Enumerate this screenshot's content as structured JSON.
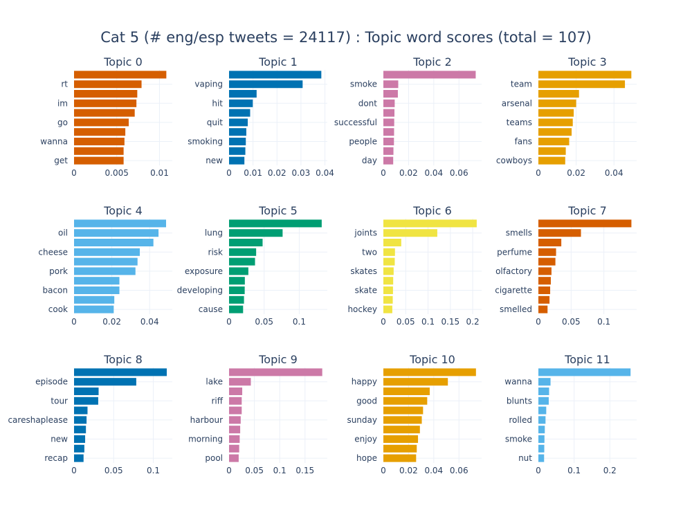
{
  "title": "Cat 5 (# eng/esp tweets = 24117) : Topic word scores (total = 107)",
  "chart_data": [
    {
      "type": "bar",
      "orientation": "horizontal",
      "title": "Topic 0",
      "color": "#D55E00",
      "categories": [
        "",
        "rt",
        "",
        "im",
        "",
        "go",
        "",
        "wanna",
        "",
        "get"
      ],
      "values": [
        0.0108,
        0.0079,
        0.0074,
        0.0073,
        0.0071,
        0.0064,
        0.006,
        0.0059,
        0.0058,
        0.0058
      ],
      "xlim": [
        0,
        0.0115
      ],
      "xticks": [
        {
          "v": 0,
          "label": "0"
        },
        {
          "v": 0.005,
          "label": "0.005"
        },
        {
          "v": 0.01,
          "label": "0.01"
        }
      ]
    },
    {
      "type": "bar",
      "orientation": "horizontal",
      "title": "Topic 1",
      "color": "#0072B2",
      "categories": [
        "",
        "vaping",
        "",
        "hit",
        "",
        "quit",
        "",
        "smoking",
        "",
        "new"
      ],
      "values": [
        0.0385,
        0.0307,
        0.0115,
        0.0099,
        0.0088,
        0.0078,
        0.0072,
        0.007,
        0.0068,
        0.0064
      ],
      "xlim": [
        0,
        0.041
      ],
      "xticks": [
        {
          "v": 0,
          "label": "0"
        },
        {
          "v": 0.01,
          "label": "0.01"
        },
        {
          "v": 0.02,
          "label": "0.02"
        },
        {
          "v": 0.03,
          "label": "0.03"
        },
        {
          "v": 0.04,
          "label": "0.04"
        }
      ]
    },
    {
      "type": "bar",
      "orientation": "horizontal",
      "title": "Topic 2",
      "color": "#CC79A7",
      "categories": [
        "",
        "smoke",
        "",
        "dont",
        "",
        "successful",
        "",
        "people",
        "",
        "day"
      ],
      "values": [
        0.0733,
        0.0118,
        0.0115,
        0.009,
        0.0088,
        0.0086,
        0.0085,
        0.0084,
        0.008,
        0.0078
      ],
      "xlim": [
        0,
        0.078
      ],
      "xticks": [
        {
          "v": 0,
          "label": "0"
        },
        {
          "v": 0.02,
          "label": "0.02"
        },
        {
          "v": 0.04,
          "label": "0.04"
        },
        {
          "v": 0.06,
          "label": "0.06"
        }
      ]
    },
    {
      "type": "bar",
      "orientation": "horizontal",
      "title": "Topic 3",
      "color": "#E69F00",
      "categories": [
        "",
        "team",
        "",
        "arsenal",
        "",
        "teams",
        "",
        "fans",
        "",
        "cowboys"
      ],
      "values": [
        0.0492,
        0.0458,
        0.0215,
        0.02,
        0.0187,
        0.0182,
        0.0176,
        0.0163,
        0.0145,
        0.0142
      ],
      "xlim": [
        0,
        0.052
      ],
      "xticks": [
        {
          "v": 0,
          "label": "0"
        },
        {
          "v": 0.02,
          "label": "0.02"
        },
        {
          "v": 0.04,
          "label": "0.04"
        }
      ]
    },
    {
      "type": "bar",
      "orientation": "horizontal",
      "title": "Topic 4",
      "color": "#56B4E9",
      "categories": [
        "",
        "oil",
        "",
        "cheese",
        "",
        "pork",
        "",
        "bacon",
        "",
        "cook"
      ],
      "values": [
        0.0487,
        0.0447,
        0.042,
        0.0348,
        0.0336,
        0.0325,
        0.024,
        0.024,
        0.0213,
        0.021
      ],
      "xlim": [
        0,
        0.052
      ],
      "xticks": [
        {
          "v": 0,
          "label": "0"
        },
        {
          "v": 0.02,
          "label": "0.02"
        },
        {
          "v": 0.04,
          "label": "0.04"
        }
      ]
    },
    {
      "type": "bar",
      "orientation": "horizontal",
      "title": "Topic 5",
      "color": "#009E73",
      "categories": [
        "",
        "lung",
        "",
        "risk",
        "",
        "exposure",
        "",
        "developing",
        "",
        "cause"
      ],
      "values": [
        0.132,
        0.0763,
        0.0478,
        0.0386,
        0.037,
        0.0275,
        0.0225,
        0.0223,
        0.0213,
        0.02
      ],
      "xlim": [
        0,
        0.14
      ],
      "xticks": [
        {
          "v": 0,
          "label": "0"
        },
        {
          "v": 0.05,
          "label": "0.05"
        },
        {
          "v": 0.1,
          "label": "0.1"
        }
      ]
    },
    {
      "type": "bar",
      "orientation": "horizontal",
      "title": "Topic 6",
      "color": "#F0E442",
      "categories": [
        "",
        "joints",
        "",
        "two",
        "",
        "skates",
        "",
        "skate",
        "",
        "hockey"
      ],
      "values": [
        0.209,
        0.1207,
        0.04,
        0.026,
        0.0255,
        0.023,
        0.022,
        0.0215,
        0.021,
        0.02
      ],
      "xlim": [
        0,
        0.22
      ],
      "xticks": [
        {
          "v": 0,
          "label": "0"
        },
        {
          "v": 0.05,
          "label": "0.05"
        },
        {
          "v": 0.1,
          "label": "0.1"
        },
        {
          "v": 0.15,
          "label": "0.15"
        },
        {
          "v": 0.2,
          "label": "0.2"
        }
      ]
    },
    {
      "type": "bar",
      "orientation": "horizontal",
      "title": "Topic 7",
      "color": "#D55E00",
      "categories": [
        "",
        "smells",
        "",
        "perfume",
        "",
        "olfactory",
        "",
        "cigarette",
        "",
        "smelled"
      ],
      "values": [
        0.142,
        0.065,
        0.035,
        0.027,
        0.026,
        0.02,
        0.019,
        0.018,
        0.017,
        0.014
      ],
      "xlim": [
        0,
        0.15
      ],
      "xticks": [
        {
          "v": 0,
          "label": "0"
        },
        {
          "v": 0.05,
          "label": "0.05"
        },
        {
          "v": 0.1,
          "label": "0.1"
        }
      ]
    },
    {
      "type": "bar",
      "orientation": "horizontal",
      "title": "Topic 8",
      "color": "#0072B2",
      "categories": [
        "",
        "episode",
        "",
        "tour",
        "",
        "careshaplease",
        "",
        "new",
        "",
        "recap"
      ],
      "values": [
        0.117,
        0.0785,
        0.031,
        0.0305,
        0.017,
        0.0158,
        0.015,
        0.014,
        0.013,
        0.012
      ],
      "xlim": [
        0,
        0.124
      ],
      "xticks": [
        {
          "v": 0,
          "label": "0"
        },
        {
          "v": 0.05,
          "label": "0.05"
        },
        {
          "v": 0.1,
          "label": "0.1"
        }
      ]
    },
    {
      "type": "bar",
      "orientation": "horizontal",
      "title": "Topic 9",
      "color": "#CC79A7",
      "categories": [
        "",
        "lake",
        "",
        "riff",
        "",
        "harbour",
        "",
        "morning",
        "",
        "pool"
      ],
      "values": [
        0.184,
        0.043,
        0.026,
        0.025,
        0.025,
        0.023,
        0.022,
        0.021,
        0.02,
        0.019
      ],
      "xlim": [
        0,
        0.194
      ],
      "xticks": [
        {
          "v": 0,
          "label": "0"
        },
        {
          "v": 0.05,
          "label": "0.05"
        },
        {
          "v": 0.1,
          "label": "0.1"
        },
        {
          "v": 0.15,
          "label": "0.15"
        }
      ]
    },
    {
      "type": "bar",
      "orientation": "horizontal",
      "title": "Topic 10",
      "color": "#E69F00",
      "categories": [
        "",
        "happy",
        "",
        "good",
        "",
        "sunday",
        "",
        "enjoy",
        "",
        "hope"
      ],
      "values": [
        0.0735,
        0.0512,
        0.0368,
        0.0348,
        0.0315,
        0.0305,
        0.029,
        0.0275,
        0.0265,
        0.026
      ],
      "xlim": [
        0,
        0.078
      ],
      "xticks": [
        {
          "v": 0,
          "label": "0"
        },
        {
          "v": 0.02,
          "label": "0.02"
        },
        {
          "v": 0.04,
          "label": "0.04"
        },
        {
          "v": 0.06,
          "label": "0.06"
        }
      ]
    },
    {
      "type": "bar",
      "orientation": "horizontal",
      "title": "Topic 11",
      "color": "#56B4E9",
      "categories": [
        "",
        "wanna",
        "",
        "blunts",
        "",
        "rolled",
        "",
        "smoke",
        "",
        "nut"
      ],
      "values": [
        0.258,
        0.034,
        0.03,
        0.029,
        0.022,
        0.02,
        0.018,
        0.017,
        0.0165,
        0.016
      ],
      "xlim": [
        0,
        0.275
      ],
      "xticks": [
        {
          "v": 0,
          "label": "0"
        },
        {
          "v": 0.1,
          "label": "0.1"
        },
        {
          "v": 0.2,
          "label": "0.2"
        }
      ]
    }
  ]
}
